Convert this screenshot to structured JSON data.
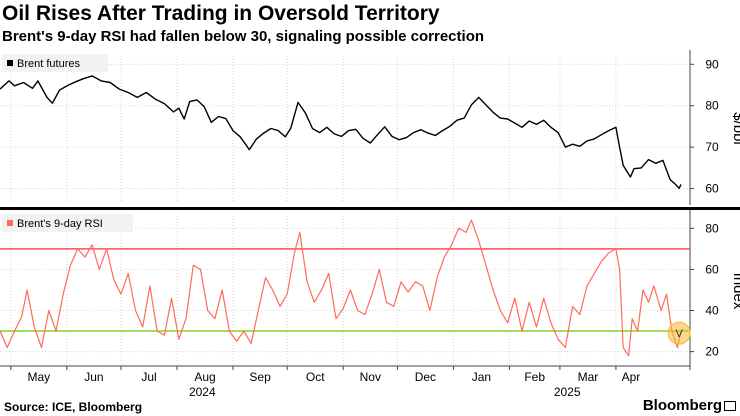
{
  "title": "Oil Rises After Trading in Oversold Territory",
  "subtitle": "Brent's 9-day RSI had fallen below 30, signaling possible correction",
  "source": "Source: ICE, Bloomberg",
  "brand": "Bloomberg",
  "chart_data": [
    {
      "type": "line",
      "ylabel": "$/bbl",
      "ylim": [
        57,
        92
      ],
      "yticks": [
        60,
        70,
        80,
        90
      ],
      "legend": "Brent futures",
      "legend_position": "top-left",
      "grid": true,
      "color": "#000000",
      "series": [
        {
          "name": "Brent futures",
          "points": [
            [
              "2024-04-25",
              84.0
            ],
            [
              "2024-04-30",
              86.0
            ],
            [
              "2024-05-03",
              84.8
            ],
            [
              "2024-05-08",
              85.6
            ],
            [
              "2024-05-13",
              84.2
            ],
            [
              "2024-05-16",
              86.0
            ],
            [
              "2024-05-21",
              82.0
            ],
            [
              "2024-05-24",
              80.6
            ],
            [
              "2024-05-28",
              83.8
            ],
            [
              "2024-06-02",
              85.0
            ],
            [
              "2024-06-06",
              85.8
            ],
            [
              "2024-06-10",
              86.5
            ],
            [
              "2024-06-15",
              87.2
            ],
            [
              "2024-06-20",
              86.0
            ],
            [
              "2024-06-25",
              85.6
            ],
            [
              "2024-06-30",
              84.0
            ],
            [
              "2024-07-05",
              83.2
            ],
            [
              "2024-07-10",
              82.0
            ],
            [
              "2024-07-15",
              83.2
            ],
            [
              "2024-07-20",
              81.6
            ],
            [
              "2024-07-25",
              80.5
            ],
            [
              "2024-07-30",
              78.5
            ],
            [
              "2024-08-02",
              79.4
            ],
            [
              "2024-08-05",
              76.8
            ],
            [
              "2024-08-08",
              81.0
            ],
            [
              "2024-08-12",
              81.4
            ],
            [
              "2024-08-16",
              79.8
            ],
            [
              "2024-08-20",
              76.0
            ],
            [
              "2024-08-24",
              77.4
            ],
            [
              "2024-08-28",
              76.9
            ],
            [
              "2024-09-01",
              74.0
            ],
            [
              "2024-09-05",
              72.5
            ],
            [
              "2024-09-10",
              69.4
            ],
            [
              "2024-09-14",
              72.0
            ],
            [
              "2024-09-18",
              73.4
            ],
            [
              "2024-09-22",
              74.5
            ],
            [
              "2024-09-26",
              74.0
            ],
            [
              "2024-09-30",
              72.5
            ],
            [
              "2024-10-03",
              74.6
            ],
            [
              "2024-10-07",
              80.8
            ],
            [
              "2024-10-11",
              78.3
            ],
            [
              "2024-10-15",
              74.5
            ],
            [
              "2024-10-19",
              73.5
            ],
            [
              "2024-10-23",
              74.8
            ],
            [
              "2024-10-27",
              73.2
            ],
            [
              "2024-10-31",
              72.6
            ],
            [
              "2024-11-04",
              74.0
            ],
            [
              "2024-11-08",
              74.3
            ],
            [
              "2024-11-12",
              72.1
            ],
            [
              "2024-11-16",
              71.0
            ],
            [
              "2024-11-20",
              73.0
            ],
            [
              "2024-11-24",
              74.9
            ],
            [
              "2024-11-28",
              72.6
            ],
            [
              "2024-12-02",
              71.8
            ],
            [
              "2024-12-06",
              72.3
            ],
            [
              "2024-12-10",
              73.5
            ],
            [
              "2024-12-14",
              74.2
            ],
            [
              "2024-12-18",
              73.4
            ],
            [
              "2024-12-22",
              72.8
            ],
            [
              "2024-12-26",
              74.0
            ],
            [
              "2024-12-30",
              75.0
            ],
            [
              "2025-01-03",
              76.5
            ],
            [
              "2025-01-07",
              77.0
            ],
            [
              "2025-01-11",
              80.2
            ],
            [
              "2025-01-15",
              82.0
            ],
            [
              "2025-01-19",
              80.2
            ],
            [
              "2025-01-23",
              78.4
            ],
            [
              "2025-01-27",
              77.0
            ],
            [
              "2025-01-31",
              76.8
            ],
            [
              "2025-02-04",
              75.8
            ],
            [
              "2025-02-08",
              74.8
            ],
            [
              "2025-02-12",
              76.3
            ],
            [
              "2025-02-16",
              75.5
            ],
            [
              "2025-02-20",
              76.5
            ],
            [
              "2025-02-24",
              74.8
            ],
            [
              "2025-02-28",
              73.5
            ],
            [
              "2025-03-04",
              70.0
            ],
            [
              "2025-03-08",
              70.7
            ],
            [
              "2025-03-12",
              70.2
            ],
            [
              "2025-03-16",
              71.5
            ],
            [
              "2025-03-20",
              72.0
            ],
            [
              "2025-03-24",
              73.0
            ],
            [
              "2025-03-28",
              74.0
            ],
            [
              "2025-04-01",
              74.8
            ],
            [
              "2025-04-03",
              70.0
            ],
            [
              "2025-04-05",
              65.6
            ],
            [
              "2025-04-09",
              62.8
            ],
            [
              "2025-04-11",
              64.8
            ],
            [
              "2025-04-15",
              65.0
            ],
            [
              "2025-04-19",
              67.0
            ],
            [
              "2025-04-23",
              66.1
            ],
            [
              "2025-04-27",
              66.8
            ],
            [
              "2025-05-01",
              62.2
            ],
            [
              "2025-05-04",
              61.0
            ],
            [
              "2025-05-06",
              60.1
            ],
            [
              "2025-05-07",
              61.0
            ]
          ]
        }
      ]
    },
    {
      "type": "line",
      "ylabel": "Index",
      "ylim": [
        13,
        86
      ],
      "yticks": [
        20,
        40,
        60,
        80
      ],
      "legend": "Brent's 9-day RSI",
      "legend_position": "top-left",
      "grid": true,
      "color": "#ff6b5b",
      "reference_lines": [
        {
          "value": 70,
          "color": "#ff4d5e"
        },
        {
          "value": 30,
          "color": "#8ed634"
        }
      ],
      "marker": {
        "date": "2025-05-06",
        "value": 29,
        "label": "V",
        "color": "#f8b830"
      },
      "series": [
        {
          "name": "Brent's 9-day RSI",
          "points": [
            [
              "2024-04-25",
              30
            ],
            [
              "2024-04-29",
              22
            ],
            [
              "2024-05-03",
              30
            ],
            [
              "2024-05-07",
              37
            ],
            [
              "2024-05-10",
              50
            ],
            [
              "2024-05-14",
              32
            ],
            [
              "2024-05-18",
              22
            ],
            [
              "2024-05-22",
              40
            ],
            [
              "2024-05-26",
              30
            ],
            [
              "2024-05-30",
              48
            ],
            [
              "2024-06-03",
              62
            ],
            [
              "2024-06-07",
              70
            ],
            [
              "2024-06-11",
              66
            ],
            [
              "2024-06-15",
              72
            ],
            [
              "2024-06-19",
              60
            ],
            [
              "2024-06-23",
              70
            ],
            [
              "2024-06-27",
              55
            ],
            [
              "2024-07-01",
              48
            ],
            [
              "2024-07-05",
              58
            ],
            [
              "2024-07-09",
              40
            ],
            [
              "2024-07-13",
              32
            ],
            [
              "2024-07-17",
              52
            ],
            [
              "2024-07-21",
              30
            ],
            [
              "2024-07-25",
              28
            ],
            [
              "2024-07-29",
              46
            ],
            [
              "2024-08-02",
              26
            ],
            [
              "2024-08-06",
              36
            ],
            [
              "2024-08-10",
              62
            ],
            [
              "2024-08-14",
              60
            ],
            [
              "2024-08-18",
              40
            ],
            [
              "2024-08-22",
              36
            ],
            [
              "2024-08-26",
              50
            ],
            [
              "2024-08-30",
              30
            ],
            [
              "2024-09-03",
              25
            ],
            [
              "2024-09-07",
              30
            ],
            [
              "2024-09-11",
              24
            ],
            [
              "2024-09-15",
              40
            ],
            [
              "2024-09-19",
              56
            ],
            [
              "2024-09-23",
              50
            ],
            [
              "2024-09-27",
              42
            ],
            [
              "2024-10-01",
              48
            ],
            [
              "2024-10-05",
              68
            ],
            [
              "2024-10-08",
              78
            ],
            [
              "2024-10-12",
              54
            ],
            [
              "2024-10-16",
              44
            ],
            [
              "2024-10-20",
              50
            ],
            [
              "2024-10-24",
              58
            ],
            [
              "2024-10-28",
              36
            ],
            [
              "2024-11-01",
              41
            ],
            [
              "2024-11-05",
              50
            ],
            [
              "2024-11-09",
              40
            ],
            [
              "2024-11-13",
              38
            ],
            [
              "2024-11-17",
              48
            ],
            [
              "2024-11-21",
              60
            ],
            [
              "2024-11-25",
              44
            ],
            [
              "2024-11-29",
              42
            ],
            [
              "2024-12-03",
              54
            ],
            [
              "2024-12-07",
              49
            ],
            [
              "2024-12-11",
              54
            ],
            [
              "2024-12-15",
              52
            ],
            [
              "2024-12-19",
              40
            ],
            [
              "2024-12-23",
              56
            ],
            [
              "2024-12-27",
              66
            ],
            [
              "2024-12-31",
              72
            ],
            [
              "2025-01-04",
              80
            ],
            [
              "2025-01-08",
              78
            ],
            [
              "2025-01-11",
              84
            ],
            [
              "2025-01-15",
              74
            ],
            [
              "2025-01-19",
              62
            ],
            [
              "2025-01-23",
              50
            ],
            [
              "2025-01-27",
              40
            ],
            [
              "2025-01-31",
              34
            ],
            [
              "2025-02-04",
              46
            ],
            [
              "2025-02-08",
              30
            ],
            [
              "2025-02-12",
              44
            ],
            [
              "2025-02-16",
              32
            ],
            [
              "2025-02-20",
              46
            ],
            [
              "2025-02-24",
              34
            ],
            [
              "2025-02-28",
              26
            ],
            [
              "2025-03-04",
              22
            ],
            [
              "2025-03-08",
              42
            ],
            [
              "2025-03-12",
              38
            ],
            [
              "2025-03-16",
              52
            ],
            [
              "2025-03-20",
              58
            ],
            [
              "2025-03-24",
              64
            ],
            [
              "2025-03-28",
              68
            ],
            [
              "2025-04-01",
              70
            ],
            [
              "2025-04-03",
              60
            ],
            [
              "2025-04-05",
              22
            ],
            [
              "2025-04-08",
              18
            ],
            [
              "2025-04-10",
              36
            ],
            [
              "2025-04-13",
              30
            ],
            [
              "2025-04-16",
              50
            ],
            [
              "2025-04-19",
              44
            ],
            [
              "2025-04-22",
              52
            ],
            [
              "2025-04-26",
              40
            ],
            [
              "2025-04-29",
              48
            ],
            [
              "2025-05-02",
              30
            ],
            [
              "2025-05-05",
              22
            ],
            [
              "2025-05-07",
              30
            ]
          ]
        }
      ]
    }
  ],
  "x_axis": {
    "range": [
      "2024-04-25",
      "2025-05-12"
    ],
    "months": [
      {
        "label": "May",
        "date": "2024-05-01"
      },
      {
        "label": "Jun",
        "date": "2024-06-01"
      },
      {
        "label": "Jul",
        "date": "2024-07-01"
      },
      {
        "label": "Aug",
        "date": "2024-08-01"
      },
      {
        "label": "Sep",
        "date": "2024-09-01"
      },
      {
        "label": "Oct",
        "date": "2024-10-01"
      },
      {
        "label": "Nov",
        "date": "2024-11-01"
      },
      {
        "label": "Dec",
        "date": "2024-12-01"
      },
      {
        "label": "Jan",
        "date": "2025-01-01"
      },
      {
        "label": "Feb",
        "date": "2025-02-01"
      },
      {
        "label": "Mar",
        "date": "2025-03-01"
      },
      {
        "label": "Apr",
        "date": "2025-04-01"
      }
    ],
    "years": [
      {
        "label": "2024",
        "date": "2024-08-15"
      },
      {
        "label": "2025",
        "date": "2025-03-05"
      }
    ]
  }
}
